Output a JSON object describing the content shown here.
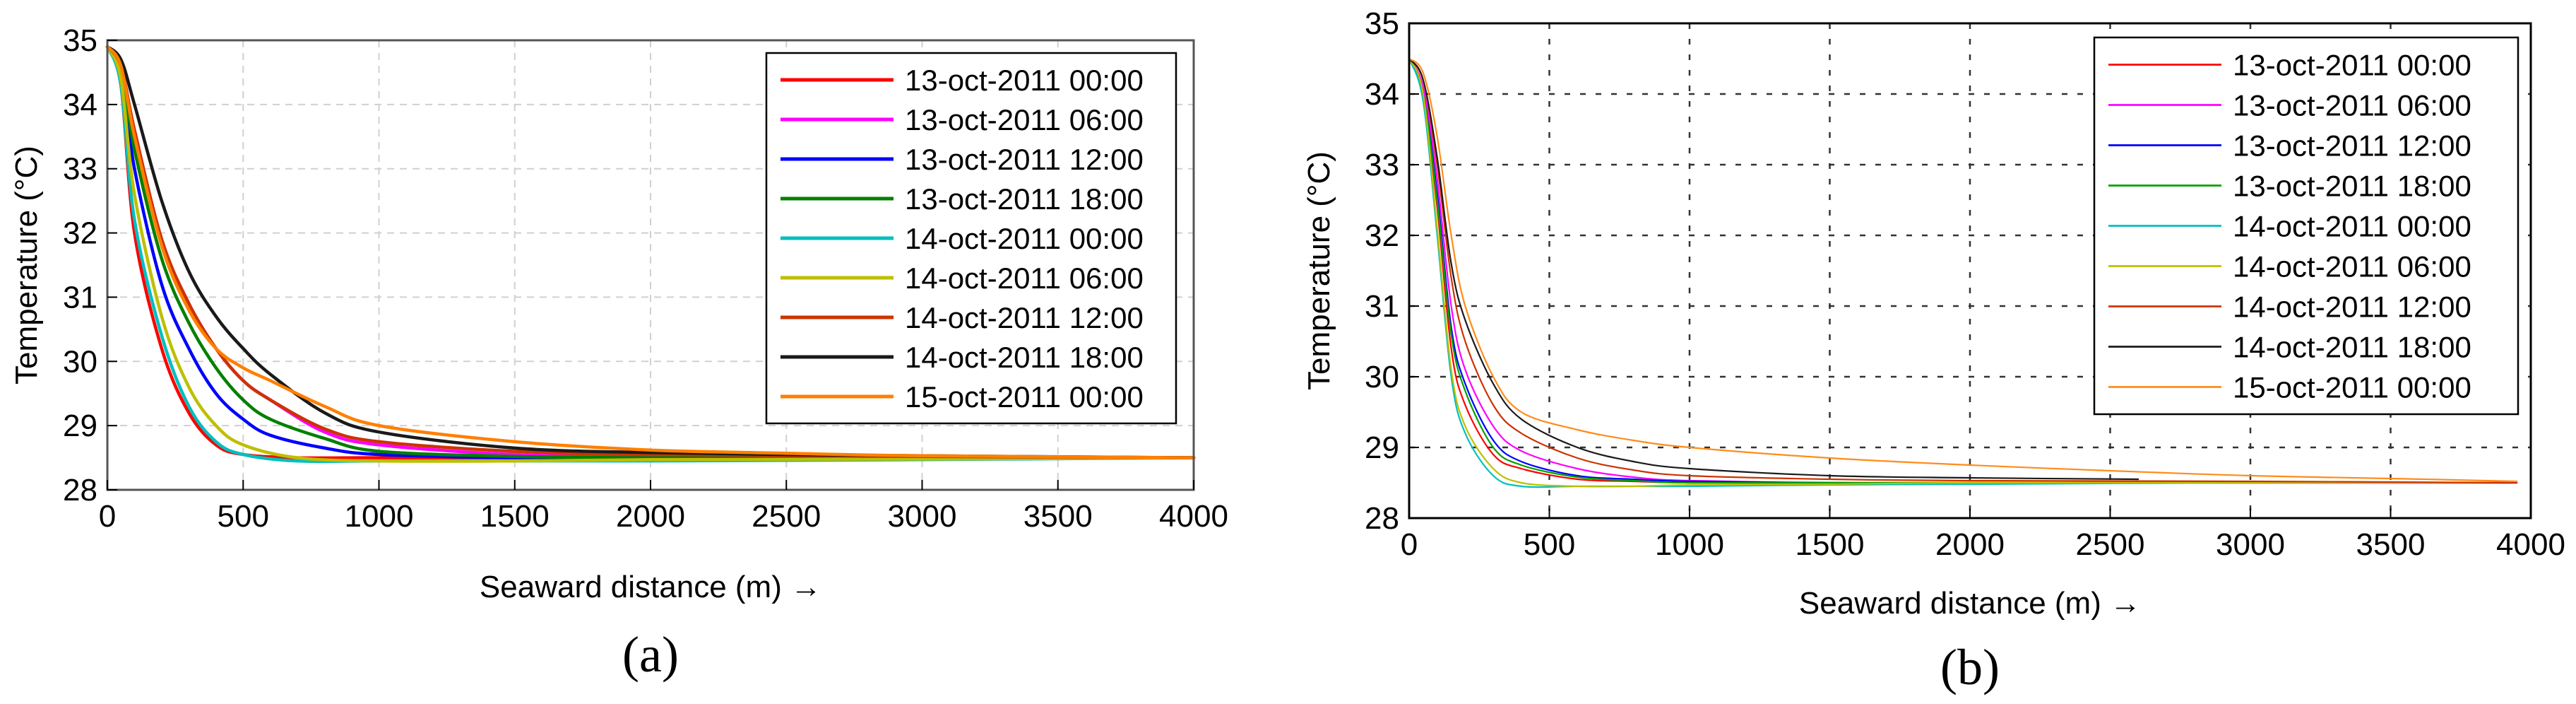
{
  "chart_data": [
    {
      "panel_label": "(a)",
      "type": "line",
      "xlabel": "Seaward distance (m) →",
      "ylabel": "Temperature (°C)",
      "xlim": [
        0,
        4000
      ],
      "ylim": [
        28,
        35
      ],
      "xticks": [
        0,
        500,
        1000,
        1500,
        2000,
        2500,
        3000,
        3500,
        4000
      ],
      "yticks": [
        28,
        29,
        30,
        31,
        32,
        33,
        34,
        35
      ],
      "grid": true,
      "legend_position": "top-right",
      "series": [
        {
          "name": "13-oct-2011 00:00",
          "color": "#ff0000",
          "x": [
            0,
            50,
            100,
            200,
            300,
            400,
            500,
            700,
            1000,
            1500,
            2000,
            3000,
            4000
          ],
          "y": [
            34.9,
            34.3,
            32.0,
            30.2,
            29.2,
            28.7,
            28.55,
            28.5,
            28.5,
            28.5,
            28.5,
            28.5,
            28.5
          ]
        },
        {
          "name": "13-oct-2011 06:00",
          "color": "#ff00ff",
          "x": [
            0,
            50,
            100,
            200,
            300,
            400,
            500,
            600,
            800,
            1000,
            1500,
            2000,
            3000,
            4000
          ],
          "y": [
            34.9,
            34.6,
            33.6,
            31.9,
            30.9,
            30.2,
            29.7,
            29.4,
            28.9,
            28.7,
            28.55,
            28.52,
            28.5,
            28.5
          ]
        },
        {
          "name": "13-oct-2011 12:00",
          "color": "#0000ff",
          "x": [
            0,
            50,
            100,
            200,
            300,
            400,
            500,
            600,
            800,
            1000,
            1500,
            2000,
            3000,
            4000
          ],
          "y": [
            34.9,
            34.5,
            33.0,
            31.2,
            30.2,
            29.5,
            29.1,
            28.85,
            28.65,
            28.55,
            28.5,
            28.5,
            28.5,
            28.5
          ]
        },
        {
          "name": "13-oct-2011 18:00",
          "color": "#008000",
          "x": [
            0,
            50,
            100,
            200,
            300,
            400,
            500,
            600,
            800,
            1000,
            1500,
            2000,
            3000,
            4000
          ],
          "y": [
            34.9,
            34.55,
            33.3,
            31.6,
            30.6,
            29.9,
            29.4,
            29.1,
            28.8,
            28.6,
            28.52,
            28.5,
            28.5,
            28.5
          ]
        },
        {
          "name": "14-oct-2011 00:00",
          "color": "#00bfbf",
          "x": [
            0,
            50,
            100,
            200,
            300,
            400,
            500,
            700,
            1000,
            1500,
            2000,
            3000,
            4000
          ],
          "y": [
            34.9,
            34.3,
            32.2,
            30.4,
            29.3,
            28.75,
            28.55,
            28.45,
            28.45,
            28.45,
            28.45,
            28.47,
            28.5
          ]
        },
        {
          "name": "14-oct-2011 06:00",
          "color": "#bfbf00",
          "x": [
            0,
            50,
            100,
            200,
            300,
            400,
            500,
            700,
            1000,
            1500,
            2000,
            3000,
            4000
          ],
          "y": [
            34.9,
            34.4,
            32.6,
            30.7,
            29.6,
            29.0,
            28.7,
            28.5,
            28.45,
            28.45,
            28.47,
            28.48,
            28.5
          ]
        },
        {
          "name": "14-oct-2011 12:00",
          "color": "#cc3300",
          "x": [
            0,
            50,
            100,
            200,
            300,
            400,
            500,
            600,
            800,
            1000,
            1500,
            2000,
            3000,
            4000
          ],
          "y": [
            34.9,
            34.6,
            33.6,
            31.9,
            30.9,
            30.2,
            29.7,
            29.4,
            28.95,
            28.75,
            28.6,
            28.55,
            28.52,
            28.5
          ]
        },
        {
          "name": "14-oct-2011 18:00",
          "color": "#1a1a1a",
          "x": [
            0,
            50,
            100,
            200,
            300,
            400,
            500,
            600,
            800,
            1000,
            1500,
            2000,
            2500,
            3000,
            4000
          ],
          "y": [
            34.9,
            34.7,
            34.0,
            32.5,
            31.4,
            30.7,
            30.2,
            29.8,
            29.2,
            28.9,
            28.65,
            28.58,
            28.55,
            28.53,
            28.5
          ]
        },
        {
          "name": "15-oct-2011 00:00",
          "color": "#ff7f00",
          "x": [
            0,
            50,
            100,
            200,
            300,
            400,
            500,
            600,
            800,
            1000,
            1500,
            2000,
            2500,
            3000,
            4000
          ],
          "y": [
            34.9,
            34.6,
            33.5,
            31.8,
            30.8,
            30.2,
            29.9,
            29.7,
            29.3,
            29.0,
            28.75,
            28.62,
            28.57,
            28.53,
            28.5
          ]
        }
      ]
    },
    {
      "panel_label": "(b)",
      "type": "line",
      "xlabel": "Seaward distance (m) →",
      "ylabel": "Temperature (°C)",
      "xlim": [
        0,
        4000
      ],
      "ylim": [
        28,
        35
      ],
      "xticks": [
        0,
        500,
        1000,
        1500,
        2000,
        2500,
        3000,
        3500,
        4000
      ],
      "yticks": [
        28,
        29,
        30,
        31,
        32,
        33,
        34,
        35
      ],
      "grid": true,
      "legend_position": "top-right",
      "series": [
        {
          "name": "13-oct-2011 00:00",
          "color": "#ff0000",
          "x": [
            0,
            50,
            100,
            150,
            200,
            300,
            400,
            600,
            800,
            1000,
            1500,
            2000,
            3000,
            3950
          ],
          "y": [
            34.5,
            34.0,
            32.4,
            30.4,
            29.6,
            28.9,
            28.7,
            28.55,
            28.52,
            28.5,
            28.5,
            28.5,
            28.5,
            28.5
          ]
        },
        {
          "name": "13-oct-2011 06:00",
          "color": "#ff00ff",
          "x": [
            0,
            50,
            100,
            150,
            200,
            300,
            400,
            600,
            800,
            1000,
            1500,
            2000,
            3000,
            3950
          ],
          "y": [
            34.5,
            34.1,
            32.8,
            31.0,
            30.1,
            29.3,
            28.95,
            28.7,
            28.58,
            28.53,
            28.5,
            28.5,
            28.5,
            28.5
          ]
        },
        {
          "name": "13-oct-2011 12:00",
          "color": "#0000ff",
          "x": [
            0,
            50,
            100,
            150,
            200,
            300,
            400,
            600,
            800,
            1000,
            1500,
            2000,
            3000,
            3950
          ],
          "y": [
            34.5,
            34.0,
            32.6,
            30.7,
            29.9,
            29.1,
            28.8,
            28.6,
            28.55,
            28.52,
            28.5,
            28.5,
            28.5,
            28.5
          ]
        },
        {
          "name": "13-oct-2011 18:00",
          "color": "#00a000",
          "x": [
            0,
            50,
            100,
            150,
            200,
            300,
            400,
            600,
            800,
            1000,
            1500,
            2000,
            3000,
            3950
          ],
          "y": [
            34.5,
            34.0,
            32.5,
            30.6,
            29.8,
            29.0,
            28.75,
            28.58,
            28.53,
            28.5,
            28.5,
            28.5,
            28.5,
            28.5
          ]
        },
        {
          "name": "14-oct-2011 00:00",
          "color": "#00bfbf",
          "x": [
            0,
            50,
            100,
            150,
            200,
            300,
            400,
            600,
            800,
            1000,
            1500,
            2000,
            3000,
            3700
          ],
          "y": [
            34.5,
            33.9,
            32.0,
            30.0,
            29.2,
            28.6,
            28.45,
            28.45,
            28.45,
            28.45,
            28.47,
            28.48,
            28.5,
            28.5
          ]
        },
        {
          "name": "14-oct-2011 06:00",
          "color": "#bfbf00",
          "x": [
            0,
            50,
            100,
            150,
            200,
            300,
            400,
            600,
            800,
            1000,
            1500,
            2000,
            3000,
            3950
          ],
          "y": [
            34.5,
            34.0,
            32.1,
            30.1,
            29.3,
            28.7,
            28.5,
            28.45,
            28.45,
            28.47,
            28.48,
            28.5,
            28.5,
            28.5
          ]
        },
        {
          "name": "14-oct-2011 12:00",
          "color": "#cc3300",
          "x": [
            0,
            50,
            100,
            150,
            200,
            300,
            400,
            600,
            800,
            1000,
            1500,
            2000,
            3000,
            3950
          ],
          "y": [
            34.5,
            34.2,
            33.0,
            31.4,
            30.5,
            29.6,
            29.2,
            28.85,
            28.68,
            28.6,
            28.55,
            28.53,
            28.52,
            28.5
          ]
        },
        {
          "name": "14-oct-2011 18:00",
          "color": "#1a1a1a",
          "x": [
            0,
            50,
            100,
            150,
            200,
            300,
            400,
            600,
            800,
            1000,
            1500,
            2000,
            2600
          ],
          "y": [
            34.5,
            34.2,
            33.1,
            31.6,
            30.8,
            29.9,
            29.4,
            29.0,
            28.8,
            28.7,
            28.6,
            28.57,
            28.55
          ]
        },
        {
          "name": "15-oct-2011 00:00",
          "color": "#ff8c1a",
          "x": [
            0,
            50,
            100,
            150,
            200,
            300,
            400,
            600,
            800,
            1000,
            1500,
            2000,
            2500,
            3000,
            3500,
            3950
          ],
          "y": [
            34.5,
            34.3,
            33.4,
            32.0,
            31.0,
            30.0,
            29.5,
            29.25,
            29.1,
            29.0,
            28.85,
            28.75,
            28.67,
            28.6,
            28.56,
            28.52
          ]
        }
      ]
    }
  ]
}
